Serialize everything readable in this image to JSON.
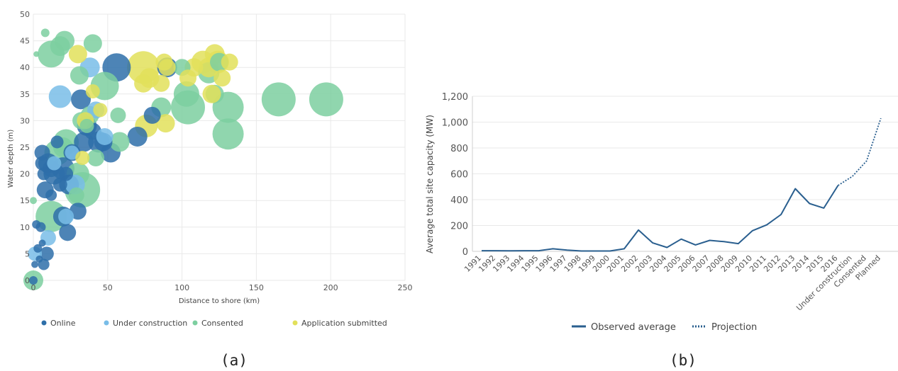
{
  "figure": {
    "label_a": "(a)",
    "label_b": "(b)"
  },
  "colors": {
    "online": "#2e6fa9",
    "under_construction": "#79bde8",
    "consented": "#7dcfa0",
    "application_submitted": "#e2e05a",
    "line": "#2a5f8f"
  },
  "chart_data": [
    {
      "type": "scatter",
      "title": "",
      "xlabel": "Distance to shore (km)",
      "ylabel": "Water depth (m)",
      "xlim": [
        0,
        250
      ],
      "ylim": [
        0,
        50
      ],
      "xticks": [
        "0",
        "50",
        "100",
        "150",
        "200",
        "250"
      ],
      "yticks": [
        "0",
        "5",
        "10",
        "15",
        "20",
        "25",
        "30",
        "35",
        "40",
        "45",
        "50"
      ],
      "grid": true,
      "legend_position": "bottom",
      "series": [
        {
          "name": "Online",
          "color_key": "online",
          "points": [
            [
              0,
              0,
              6
            ],
            [
              1,
              3,
              5
            ],
            [
              2,
              10.5,
              6
            ],
            [
              3,
              6,
              6
            ],
            [
              4,
              4,
              5
            ],
            [
              5,
              10,
              7
            ],
            [
              6,
              7,
              5
            ],
            [
              6,
              24,
              11
            ],
            [
              7,
              20,
              9
            ],
            [
              8,
              17,
              12
            ],
            [
              6,
              22,
              10
            ],
            [
              9,
              5,
              10
            ],
            [
              7,
              3,
              8
            ],
            [
              10,
              22,
              14
            ],
            [
              12,
              21,
              12
            ],
            [
              14,
              20,
              15
            ],
            [
              16,
              26,
              9
            ],
            [
              20,
              21,
              16
            ],
            [
              22,
              20,
              10
            ],
            [
              24,
              18,
              14
            ],
            [
              23,
              9,
              12
            ],
            [
              26,
              24,
              12
            ],
            [
              20,
              12,
              14
            ],
            [
              30,
              13,
              12
            ],
            [
              32,
              34,
              14
            ],
            [
              36,
              29,
              14
            ],
            [
              34,
              26,
              14
            ],
            [
              40,
              28,
              12
            ],
            [
              44,
              26,
              15
            ],
            [
              47,
              26,
              13
            ],
            [
              52,
              24,
              14
            ],
            [
              56,
              40,
              20
            ],
            [
              70,
              27,
              14
            ],
            [
              80,
              31,
              12
            ],
            [
              90,
              40,
              14
            ],
            [
              12,
              16,
              8
            ],
            [
              18,
              18,
              10
            ]
          ]
        },
        {
          "name": "Under construction",
          "color_key": "under_construction",
          "points": [
            [
              1,
              5,
              10
            ],
            [
              10,
              8,
              11
            ],
            [
              18,
              34.5,
              16
            ],
            [
              38,
              40,
              14
            ],
            [
              28,
              18,
              14
            ],
            [
              42,
              32,
              12
            ],
            [
              48,
              27,
              12
            ],
            [
              26,
              24,
              10
            ],
            [
              14,
              22,
              10
            ],
            [
              22,
              12,
              11
            ]
          ]
        },
        {
          "name": "Consented",
          "color_key": "consented",
          "points": [
            [
              0,
              0,
              14
            ],
            [
              0,
              15,
              5
            ],
            [
              2,
              42.5,
              4
            ],
            [
              8,
              46.5,
              6
            ],
            [
              12,
              42.5,
              19
            ],
            [
              18,
              44,
              14
            ],
            [
              21,
              45,
              14
            ],
            [
              40,
              44.5,
              13
            ],
            [
              31,
              38.5,
              13
            ],
            [
              48,
              36.5,
              20
            ],
            [
              57,
              31,
              11
            ],
            [
              58,
              26,
              14
            ],
            [
              20,
              25,
              14
            ],
            [
              16,
              24,
              18
            ],
            [
              22,
              26,
              18
            ],
            [
              30,
              20,
              16
            ],
            [
              33,
              17,
              25
            ],
            [
              12,
              12,
              22
            ],
            [
              29,
              16,
              11
            ],
            [
              32,
              30,
              12
            ],
            [
              38,
              31,
              13
            ],
            [
              42,
              23,
              12
            ],
            [
              86,
              32.5,
              14
            ],
            [
              103,
              35,
              18
            ],
            [
              104,
              32.5,
              24
            ],
            [
              118,
              39,
              15
            ],
            [
              122,
              35,
              13
            ],
            [
              125,
              41,
              13
            ],
            [
              131,
              32.5,
              22
            ],
            [
              131,
              27.5,
              22
            ],
            [
              165,
              34,
              24
            ],
            [
              197,
              34,
              24
            ],
            [
              36,
              29,
              10
            ],
            [
              100,
              40,
              12
            ]
          ]
        },
        {
          "name": "Application submitted",
          "color_key": "application_submitted",
          "points": [
            [
              30,
              42.5,
              13
            ],
            [
              40,
              35.5,
              10
            ],
            [
              45,
              32,
              10
            ],
            [
              35,
              30,
              12
            ],
            [
              33,
              23,
              10
            ],
            [
              74,
              40,
              23
            ],
            [
              74,
              37,
              13
            ],
            [
              76,
              29,
              16
            ],
            [
              78,
              38,
              14
            ],
            [
              86,
              37,
              12
            ],
            [
              88,
              41,
              12
            ],
            [
              89,
              29.5,
              13
            ],
            [
              104,
              38,
              12
            ],
            [
              108,
              40,
              13
            ],
            [
              114,
              41,
              16
            ],
            [
              118,
              40,
              14
            ],
            [
              122,
              42.5,
              14
            ],
            [
              124,
              41,
              16
            ],
            [
              127,
              38,
              12
            ],
            [
              132,
              41,
              12
            ],
            [
              120,
              35,
              13
            ],
            [
              90,
              40,
              12
            ]
          ]
        }
      ]
    },
    {
      "type": "line",
      "title": "",
      "xlabel": "",
      "ylabel": "Average total site capacity (MW)",
      "ylim": [
        0,
        1200
      ],
      "yticks": [
        "0",
        "200",
        "400",
        "600",
        "800",
        "1,000",
        "1,200"
      ],
      "categories": [
        "1991",
        "1992",
        "1993",
        "1994",
        "1995",
        "1996",
        "1997",
        "1998",
        "1999",
        "2000",
        "2001",
        "2002",
        "2003",
        "2004",
        "2005",
        "2006",
        "2007",
        "2008",
        "2009",
        "2010",
        "2011",
        "2012",
        "2013",
        "2014",
        "2015",
        "2016",
        "Under construction",
        "Consented",
        "Planned"
      ],
      "grid": true,
      "legend_position": "bottom",
      "series": [
        {
          "name": "Observed average",
          "style": "solid",
          "values": [
            5,
            5,
            4,
            5,
            5,
            20,
            10,
            3,
            3,
            3,
            20,
            165,
            65,
            30,
            95,
            50,
            85,
            75,
            60,
            160,
            205,
            285,
            485,
            370,
            335,
            510,
            null,
            null,
            null
          ]
        },
        {
          "name": "Projection",
          "style": "dotted",
          "values": [
            null,
            null,
            null,
            null,
            null,
            null,
            null,
            null,
            null,
            null,
            null,
            null,
            null,
            null,
            null,
            null,
            null,
            null,
            null,
            null,
            null,
            null,
            null,
            null,
            null,
            510,
            580,
            700,
            1030
          ]
        }
      ]
    }
  ]
}
